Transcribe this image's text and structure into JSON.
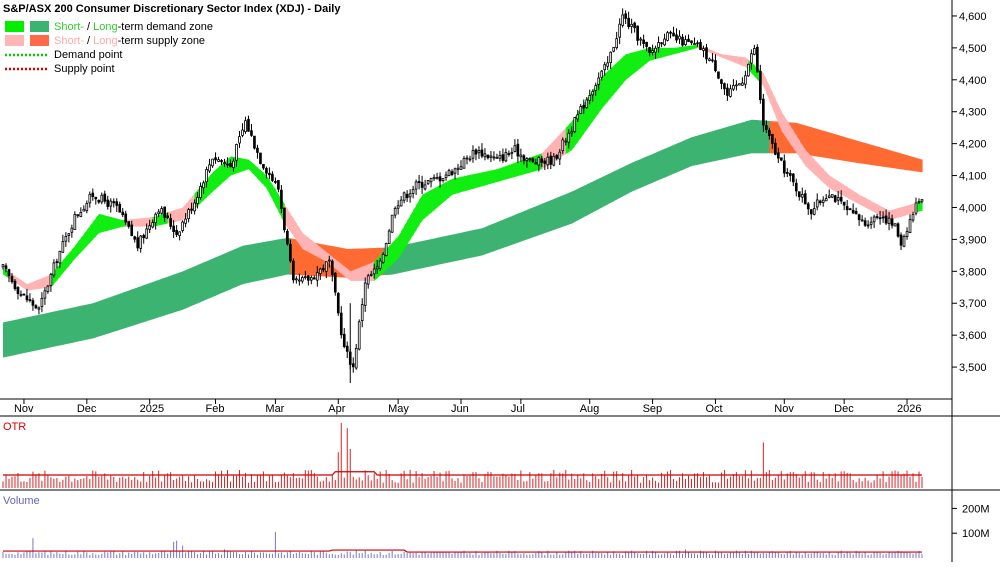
{
  "chart_data": {
    "type": "candlestick",
    "title": "S&P/ASX 200 Consumer Discretionary Sector Index (XDJ) - Daily",
    "legend": {
      "placement": "top-left",
      "entries": [
        {
          "parts": [
            {
              "text": "Short-",
              "color": "#33cc33"
            },
            {
              "text": " / ",
              "color": "#000000"
            },
            {
              "text": "Long",
              "color": "#33cc33"
            },
            {
              "text": "-term demand zone",
              "color": "#000000"
            }
          ],
          "swatches": [
            "#00ee00",
            "#3cb371"
          ],
          "kind": "box"
        },
        {
          "parts": [
            {
              "text": "Short-",
              "color": "#ffaaaa"
            },
            {
              "text": " / ",
              "color": "#000000"
            },
            {
              "text": "Long",
              "color": "#ffaaaa"
            },
            {
              "text": "-term supply zone",
              "color": "#000000"
            }
          ],
          "swatches": [
            "#ffb6b6",
            "#ff6a4a"
          ],
          "kind": "box"
        },
        {
          "parts": [
            {
              "text": "Demand point",
              "color": "#000000"
            }
          ],
          "swatches": [
            "#00cc00"
          ],
          "kind": "dots"
        },
        {
          "parts": [
            {
              "text": "Supply point",
              "color": "#000000"
            }
          ],
          "swatches": [
            "#dd0000"
          ],
          "kind": "dots"
        }
      ]
    },
    "price_axis": {
      "min": 3400,
      "max": 4650,
      "ticks": [
        3500,
        3600,
        3700,
        3800,
        3900,
        4000,
        4100,
        4200,
        4300,
        4400,
        4500,
        4600
      ],
      "tick_labels": [
        "3,500",
        "3,600",
        "3,700",
        "3,800",
        "3,900",
        "4,000",
        "4,100",
        "4,200",
        "4,300",
        "4,400",
        "4,500",
        "4,600"
      ]
    },
    "time_axis": {
      "labels": [
        {
          "text": "Nov",
          "day": 7
        },
        {
          "text": "Dec",
          "day": 28
        },
        {
          "text": "2025",
          "day": 49
        },
        {
          "text": "Feb",
          "day": 71
        },
        {
          "text": "Mar",
          "day": 91
        },
        {
          "text": "Apr",
          "day": 112
        },
        {
          "text": "May",
          "day": 132
        },
        {
          "text": "Jun",
          "day": 153
        },
        {
          "text": "Jul",
          "day": 173
        },
        {
          "text": "Aug",
          "day": 196
        },
        {
          "text": "Sep",
          "day": 217
        },
        {
          "text": "Oct",
          "day": 238
        },
        {
          "text": "Nov",
          "day": 261
        },
        {
          "text": "Dec",
          "day": 281
        },
        {
          "text": "2026",
          "day": 302
        }
      ]
    },
    "price_series": [
      {
        "day": 0,
        "price": 3810
      },
      {
        "day": 6,
        "price": 3730
      },
      {
        "day": 12,
        "price": 3680
      },
      {
        "day": 18,
        "price": 3840
      },
      {
        "day": 24,
        "price": 3970
      },
      {
        "day": 30,
        "price": 4040
      },
      {
        "day": 38,
        "price": 4000
      },
      {
        "day": 45,
        "price": 3880
      },
      {
        "day": 52,
        "price": 4000
      },
      {
        "day": 58,
        "price": 3920
      },
      {
        "day": 64,
        "price": 4020
      },
      {
        "day": 70,
        "price": 4160
      },
      {
        "day": 76,
        "price": 4130
      },
      {
        "day": 81,
        "price": 4270
      },
      {
        "day": 86,
        "price": 4150
      },
      {
        "day": 92,
        "price": 4060
      },
      {
        "day": 97,
        "price": 3760
      },
      {
        "day": 103,
        "price": 3780
      },
      {
        "day": 109,
        "price": 3830
      },
      {
        "day": 114,
        "price": 3560
      },
      {
        "day": 117,
        "price": 3500
      },
      {
        "day": 121,
        "price": 3770
      },
      {
        "day": 126,
        "price": 3820
      },
      {
        "day": 131,
        "price": 4010
      },
      {
        "day": 138,
        "price": 4070
      },
      {
        "day": 145,
        "price": 4090
      },
      {
        "day": 151,
        "price": 4120
      },
      {
        "day": 158,
        "price": 4180
      },
      {
        "day": 165,
        "price": 4150
      },
      {
        "day": 171,
        "price": 4180
      },
      {
        "day": 177,
        "price": 4140
      },
      {
        "day": 184,
        "price": 4150
      },
      {
        "day": 190,
        "price": 4250
      },
      {
        "day": 196,
        "price": 4360
      },
      {
        "day": 202,
        "price": 4450
      },
      {
        "day": 207,
        "price": 4600
      },
      {
        "day": 211,
        "price": 4550
      },
      {
        "day": 216,
        "price": 4480
      },
      {
        "day": 221,
        "price": 4540
      },
      {
        "day": 227,
        "price": 4520
      },
      {
        "day": 233,
        "price": 4500
      },
      {
        "day": 238,
        "price": 4440
      },
      {
        "day": 242,
        "price": 4350
      },
      {
        "day": 247,
        "price": 4400
      },
      {
        "day": 251,
        "price": 4500
      },
      {
        "day": 254,
        "price": 4260
      },
      {
        "day": 259,
        "price": 4150
      },
      {
        "day": 265,
        "price": 4060
      },
      {
        "day": 270,
        "price": 3990
      },
      {
        "day": 276,
        "price": 4050
      },
      {
        "day": 282,
        "price": 3990
      },
      {
        "day": 288,
        "price": 3950
      },
      {
        "day": 293,
        "price": 3980
      },
      {
        "day": 298,
        "price": 3940
      },
      {
        "day": 300,
        "price": 3890
      },
      {
        "day": 303,
        "price": 3960
      },
      {
        "day": 306,
        "price": 4030
      }
    ],
    "long_term_zone": [
      {
        "day": 0,
        "low": 3530,
        "high": 3640
      },
      {
        "day": 30,
        "low": 3590,
        "high": 3700
      },
      {
        "day": 60,
        "low": 3680,
        "high": 3800
      },
      {
        "day": 80,
        "low": 3760,
        "high": 3880
      },
      {
        "day": 95,
        "low": 3790,
        "high": 3905
      },
      {
        "day": 115,
        "low": 3780,
        "high": 3870
      },
      {
        "day": 130,
        "low": 3790,
        "high": 3875
      },
      {
        "day": 160,
        "low": 3850,
        "high": 3935
      },
      {
        "day": 190,
        "low": 3950,
        "high": 4050
      },
      {
        "day": 210,
        "low": 4050,
        "high": 4140
      },
      {
        "day": 230,
        "low": 4130,
        "high": 4220
      },
      {
        "day": 250,
        "low": 4170,
        "high": 4275
      },
      {
        "day": 265,
        "low": 4170,
        "high": 4265
      },
      {
        "day": 285,
        "low": 4140,
        "high": 4210
      },
      {
        "day": 307,
        "low": 4110,
        "high": 4150
      }
    ],
    "short_term_zone": [
      {
        "day": 0,
        "low": 3790,
        "high": 3810
      },
      {
        "day": 8,
        "low": 3740,
        "high": 3760
      },
      {
        "day": 16,
        "low": 3750,
        "high": 3790
      },
      {
        "day": 24,
        "low": 3840,
        "high": 3880
      },
      {
        "day": 32,
        "low": 3920,
        "high": 3980
      },
      {
        "day": 40,
        "low": 3940,
        "high": 3960
      },
      {
        "day": 50,
        "low": 3940,
        "high": 3970
      },
      {
        "day": 60,
        "low": 3960,
        "high": 4000
      },
      {
        "day": 70,
        "low": 4050,
        "high": 4110
      },
      {
        "day": 76,
        "low": 4100,
        "high": 4160
      },
      {
        "day": 82,
        "low": 4120,
        "high": 4150
      },
      {
        "day": 88,
        "low": 4060,
        "high": 4100
      },
      {
        "day": 94,
        "low": 3950,
        "high": 4010
      },
      {
        "day": 100,
        "low": 3870,
        "high": 3920
      },
      {
        "day": 108,
        "low": 3830,
        "high": 3860
      },
      {
        "day": 116,
        "low": 3770,
        "high": 3800
      },
      {
        "day": 124,
        "low": 3770,
        "high": 3830
      },
      {
        "day": 132,
        "low": 3840,
        "high": 3910
      },
      {
        "day": 140,
        "low": 3960,
        "high": 4040
      },
      {
        "day": 150,
        "low": 4040,
        "high": 4090
      },
      {
        "day": 165,
        "low": 4080,
        "high": 4120
      },
      {
        "day": 180,
        "low": 4120,
        "high": 4170
      },
      {
        "day": 190,
        "low": 4180,
        "high": 4270
      },
      {
        "day": 200,
        "low": 4310,
        "high": 4410
      },
      {
        "day": 208,
        "low": 4400,
        "high": 4480
      },
      {
        "day": 216,
        "low": 4460,
        "high": 4500
      },
      {
        "day": 224,
        "low": 4480,
        "high": 4500
      },
      {
        "day": 232,
        "low": 4500,
        "high": 4510
      },
      {
        "day": 240,
        "low": 4470,
        "high": 4480
      },
      {
        "day": 248,
        "low": 4440,
        "high": 4470
      },
      {
        "day": 254,
        "low": 4380,
        "high": 4420
      },
      {
        "day": 260,
        "low": 4240,
        "high": 4300
      },
      {
        "day": 268,
        "low": 4130,
        "high": 4180
      },
      {
        "day": 276,
        "low": 4060,
        "high": 4100
      },
      {
        "day": 286,
        "low": 4010,
        "high": 4040
      },
      {
        "day": 296,
        "low": 3960,
        "high": 3990
      },
      {
        "day": 307,
        "low": 3990,
        "high": 4020
      }
    ],
    "otr_panel": {
      "label": "OTR",
      "label_color": "#dd0000",
      "bar_color": "#dd2222",
      "line_color": "#cc0000",
      "spikes": [
        {
          "day": 113,
          "value": 1.0
        },
        {
          "day": 115,
          "value": 0.92
        },
        {
          "day": 116,
          "value": 0.6
        },
        {
          "day": 112,
          "value": 0.55
        },
        {
          "day": 254,
          "value": 0.7
        }
      ]
    },
    "volume_panel": {
      "label": "Volume",
      "label_color": "#6666bb",
      "bar_color": "#7777cc",
      "line_color": "#cc0000",
      "axis": {
        "max": 250,
        "ticks": [
          100,
          200
        ],
        "tick_labels": [
          "100M",
          "200M"
        ]
      },
      "spikes": [
        {
          "day": 10,
          "value": 80
        },
        {
          "day": 57,
          "value": 65
        },
        {
          "day": 58,
          "value": 70
        },
        {
          "day": 60,
          "value": 50
        },
        {
          "day": 91,
          "value": 105
        },
        {
          "day": 74,
          "value": 35
        },
        {
          "day": 228,
          "value": 35
        },
        {
          "day": 280,
          "value": 30
        },
        {
          "day": 291,
          "value": 25
        }
      ]
    }
  }
}
